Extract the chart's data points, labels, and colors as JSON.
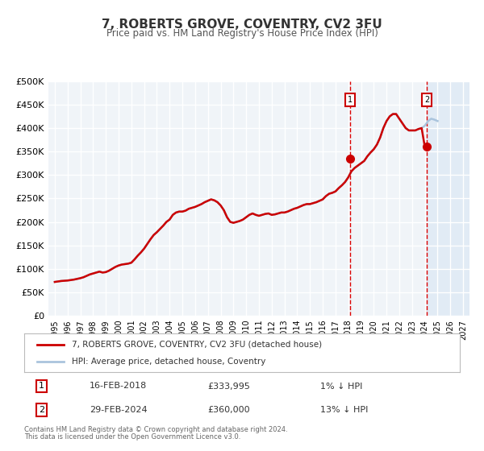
{
  "title": "7, ROBERTS GROVE, COVENTRY, CV2 3FU",
  "subtitle": "Price paid vs. HM Land Registry's House Price Index (HPI)",
  "legend_line1": "7, ROBERTS GROVE, COVENTRY, CV2 3FU (detached house)",
  "legend_line2": "HPI: Average price, detached house, Coventry",
  "footer1": "Contains HM Land Registry data © Crown copyright and database right 2024.",
  "footer2": "This data is licensed under the Open Government Licence v3.0.",
  "annotation1_label": "1",
  "annotation1_date": "16-FEB-2018",
  "annotation1_price": "£333,995",
  "annotation1_hpi": "1% ↓ HPI",
  "annotation2_label": "2",
  "annotation2_date": "29-FEB-2024",
  "annotation2_price": "£360,000",
  "annotation2_hpi": "13% ↓ HPI",
  "hpi_color": "#aac4dd",
  "price_color": "#cc0000",
  "marker_color": "#cc0000",
  "vline_color": "#dd0000",
  "bg_color": "#f0f4f8",
  "plot_bg": "#f0f4f8",
  "grid_color": "#ffffff",
  "ylim": [
    0,
    500000
  ],
  "yticks": [
    0,
    50000,
    100000,
    150000,
    200000,
    250000,
    300000,
    350000,
    400000,
    450000,
    500000
  ],
  "ytick_labels": [
    "£0",
    "£50K",
    "£100K",
    "£150K",
    "£200K",
    "£250K",
    "£300K",
    "£350K",
    "£400K",
    "£450K",
    "£500K"
  ],
  "xlim_start": 1994.5,
  "xlim_end": 2027.5,
  "xticks": [
    1995,
    1996,
    1997,
    1998,
    1999,
    2000,
    2001,
    2002,
    2003,
    2004,
    2005,
    2006,
    2007,
    2008,
    2009,
    2010,
    2011,
    2012,
    2013,
    2014,
    2015,
    2016,
    2017,
    2018,
    2019,
    2020,
    2021,
    2022,
    2023,
    2024,
    2025,
    2026,
    2027
  ],
  "sale1_x": 2018.125,
  "sale1_y": 333995,
  "sale2_x": 2024.167,
  "sale2_y": 360000,
  "hpi_data_x": [
    1995.0,
    1995.25,
    1995.5,
    1995.75,
    1996.0,
    1996.25,
    1996.5,
    1996.75,
    1997.0,
    1997.25,
    1997.5,
    1997.75,
    1998.0,
    1998.25,
    1998.5,
    1998.75,
    1999.0,
    1999.25,
    1999.5,
    1999.75,
    2000.0,
    2000.25,
    2000.5,
    2000.75,
    2001.0,
    2001.25,
    2001.5,
    2001.75,
    2002.0,
    2002.25,
    2002.5,
    2002.75,
    2003.0,
    2003.25,
    2003.5,
    2003.75,
    2004.0,
    2004.25,
    2004.5,
    2004.75,
    2005.0,
    2005.25,
    2005.5,
    2005.75,
    2006.0,
    2006.25,
    2006.5,
    2006.75,
    2007.0,
    2007.25,
    2007.5,
    2007.75,
    2008.0,
    2008.25,
    2008.5,
    2008.75,
    2009.0,
    2009.25,
    2009.5,
    2009.75,
    2010.0,
    2010.25,
    2010.5,
    2010.75,
    2011.0,
    2011.25,
    2011.5,
    2011.75,
    2012.0,
    2012.25,
    2012.5,
    2012.75,
    2013.0,
    2013.25,
    2013.5,
    2013.75,
    2014.0,
    2014.25,
    2014.5,
    2014.75,
    2015.0,
    2015.25,
    2015.5,
    2015.75,
    2016.0,
    2016.25,
    2016.5,
    2016.75,
    2017.0,
    2017.25,
    2017.5,
    2017.75,
    2018.0,
    2018.25,
    2018.5,
    2018.75,
    2019.0,
    2019.25,
    2019.5,
    2019.75,
    2020.0,
    2020.25,
    2020.5,
    2020.75,
    2021.0,
    2021.25,
    2021.5,
    2021.75,
    2022.0,
    2022.25,
    2022.5,
    2022.75,
    2023.0,
    2023.25,
    2023.5,
    2023.75,
    2024.0,
    2024.25,
    2024.5,
    2024.75,
    2025.0
  ],
  "hpi_data_y": [
    72000,
    73000,
    74000,
    74500,
    75000,
    76000,
    77000,
    78500,
    80000,
    82000,
    85000,
    88000,
    90000,
    92000,
    94000,
    92000,
    93000,
    96000,
    100000,
    104000,
    107000,
    109000,
    110000,
    111000,
    113000,
    120000,
    128000,
    135000,
    143000,
    153000,
    163000,
    172000,
    178000,
    185000,
    192000,
    200000,
    205000,
    215000,
    220000,
    222000,
    222000,
    224000,
    228000,
    230000,
    232000,
    235000,
    238000,
    242000,
    245000,
    248000,
    246000,
    242000,
    235000,
    225000,
    210000,
    200000,
    198000,
    200000,
    202000,
    205000,
    210000,
    215000,
    218000,
    215000,
    213000,
    215000,
    217000,
    218000,
    215000,
    216000,
    218000,
    220000,
    220000,
    222000,
    225000,
    228000,
    230000,
    233000,
    236000,
    238000,
    238000,
    240000,
    242000,
    245000,
    248000,
    255000,
    260000,
    262000,
    265000,
    272000,
    278000,
    285000,
    295000,
    308000,
    315000,
    320000,
    325000,
    330000,
    340000,
    348000,
    355000,
    365000,
    380000,
    400000,
    415000,
    425000,
    430000,
    430000,
    420000,
    410000,
    400000,
    395000,
    395000,
    395000,
    398000,
    400000,
    405000,
    415000,
    420000,
    418000,
    415000
  ],
  "price_data_x": [
    1995.0,
    1995.25,
    1995.5,
    1995.75,
    1996.0,
    1996.25,
    1996.5,
    1996.75,
    1997.0,
    1997.25,
    1997.5,
    1997.75,
    1998.0,
    1998.25,
    1998.5,
    1998.75,
    1999.0,
    1999.25,
    1999.5,
    1999.75,
    2000.0,
    2000.25,
    2000.5,
    2000.75,
    2001.0,
    2001.25,
    2001.5,
    2001.75,
    2002.0,
    2002.25,
    2002.5,
    2002.75,
    2003.0,
    2003.25,
    2003.5,
    2003.75,
    2004.0,
    2004.25,
    2004.5,
    2004.75,
    2005.0,
    2005.25,
    2005.5,
    2005.75,
    2006.0,
    2006.25,
    2006.5,
    2006.75,
    2007.0,
    2007.25,
    2007.5,
    2007.75,
    2008.0,
    2008.25,
    2008.5,
    2008.75,
    2009.0,
    2009.25,
    2009.5,
    2009.75,
    2010.0,
    2010.25,
    2010.5,
    2010.75,
    2011.0,
    2011.25,
    2011.5,
    2011.75,
    2012.0,
    2012.25,
    2012.5,
    2012.75,
    2013.0,
    2013.25,
    2013.5,
    2013.75,
    2014.0,
    2014.25,
    2014.5,
    2014.75,
    2015.0,
    2015.25,
    2015.5,
    2015.75,
    2016.0,
    2016.25,
    2016.5,
    2016.75,
    2017.0,
    2017.25,
    2017.5,
    2017.75,
    2018.0,
    2018.25,
    2018.5,
    2018.75,
    2019.0,
    2019.25,
    2019.5,
    2019.75,
    2020.0,
    2020.25,
    2020.5,
    2020.75,
    2021.0,
    2021.25,
    2021.5,
    2021.75,
    2022.0,
    2022.25,
    2022.5,
    2022.75,
    2023.0,
    2023.25,
    2023.5,
    2023.75,
    2024.0,
    2024.25
  ],
  "price_data_y": [
    72000,
    73000,
    74000,
    74500,
    75000,
    76000,
    77000,
    78500,
    80000,
    82000,
    85000,
    88000,
    90000,
    92000,
    94000,
    92000,
    93000,
    96000,
    100000,
    104000,
    107000,
    109000,
    110000,
    111000,
    113000,
    120000,
    128000,
    135000,
    143000,
    153000,
    163000,
    172000,
    178000,
    185000,
    192000,
    200000,
    205000,
    215000,
    220000,
    222000,
    222000,
    224000,
    228000,
    230000,
    232000,
    235000,
    238000,
    242000,
    245000,
    248000,
    246000,
    242000,
    235000,
    225000,
    210000,
    200000,
    198000,
    200000,
    202000,
    205000,
    210000,
    215000,
    218000,
    215000,
    213000,
    215000,
    217000,
    218000,
    215000,
    216000,
    218000,
    220000,
    220000,
    222000,
    225000,
    228000,
    230000,
    233000,
    236000,
    238000,
    238000,
    240000,
    242000,
    245000,
    248000,
    255000,
    260000,
    262000,
    265000,
    272000,
    278000,
    285000,
    295000,
    308000,
    315000,
    320000,
    325000,
    330000,
    340000,
    348000,
    355000,
    365000,
    380000,
    400000,
    415000,
    425000,
    430000,
    430000,
    420000,
    410000,
    400000,
    395000,
    395000,
    395000,
    398000,
    400000,
    360000,
    360000
  ]
}
